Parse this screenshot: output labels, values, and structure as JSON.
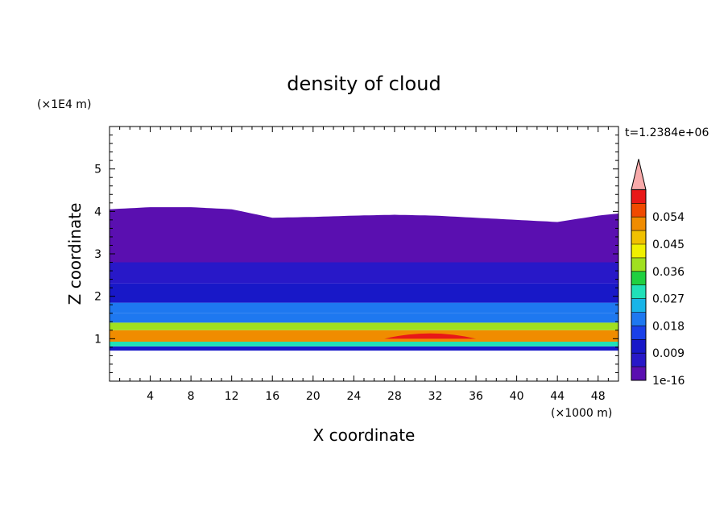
{
  "chart_data": {
    "type": "heatmap",
    "title": "density of cloud",
    "xlabel": "X coordinate",
    "ylabel": "Z coordinate",
    "x_unit": "(×1000 m)",
    "y_unit": "(×1E4 m)",
    "time_label": "t=1.2384e+06",
    "xlim": [
      0,
      50
    ],
    "ylim": [
      0,
      6
    ],
    "x_ticks": [
      4,
      8,
      12,
      16,
      20,
      24,
      28,
      32,
      36,
      40,
      44,
      48
    ],
    "y_ticks": [
      1,
      2,
      3,
      4,
      5
    ],
    "colorbar": {
      "labels": [
        "1e-16",
        "0.009",
        "0.018",
        "0.027",
        "0.036",
        "0.045",
        "0.054"
      ],
      "levels": [
        0,
        0.0045,
        0.009,
        0.0135,
        0.018,
        0.0225,
        0.027,
        0.0315,
        0.036,
        0.0405,
        0.045,
        0.0495,
        0.054,
        0.0585,
        0.063
      ],
      "colors": [
        "#5a0fb0",
        "#2818c8",
        "#1818c8",
        "#1a40e8",
        "#1e78f0",
        "#18b4e8",
        "#20e0b8",
        "#20d040",
        "#a0e020",
        "#f0f000",
        "#f0c000",
        "#f08c00",
        "#f04a00",
        "#e81818",
        "#f8aaaa"
      ],
      "extend": "max"
    },
    "layers": [
      {
        "z_bottom": 0.72,
        "z_top": 0.82,
        "value": 0.009
      },
      {
        "z_bottom": 0.82,
        "z_top": 0.93,
        "value": 0.027
      },
      {
        "z_bottom": 0.93,
        "z_top": 1.2,
        "value": 0.05
      },
      {
        "z_bottom": 1.2,
        "z_top": 1.38,
        "value": 0.036
      },
      {
        "z_bottom": 1.38,
        "z_top": 1.6,
        "value": 0.022
      },
      {
        "z_bottom": 1.6,
        "z_top": 1.85,
        "value": 0.018
      },
      {
        "z_bottom": 1.85,
        "z_top": 2.3,
        "value": 0.009
      },
      {
        "z_bottom": 2.3,
        "z_top": 2.8,
        "value": 0.0045
      },
      {
        "z_bottom": 2.8,
        "z_top": 4.05,
        "value": 0.0
      }
    ],
    "cloud_top": {
      "x": [
        0,
        4,
        8,
        12,
        16,
        20,
        24,
        28,
        32,
        36,
        40,
        44,
        48,
        50
      ],
      "z": [
        4.05,
        4.1,
        4.1,
        4.05,
        3.85,
        3.87,
        3.9,
        3.92,
        3.9,
        3.85,
        3.8,
        3.75,
        3.9,
        3.95
      ]
    },
    "max_region": {
      "x_start": 27,
      "x_end": 36,
      "z_bottom": 1.0,
      "z_top": 1.15,
      "value": 0.06
    }
  }
}
